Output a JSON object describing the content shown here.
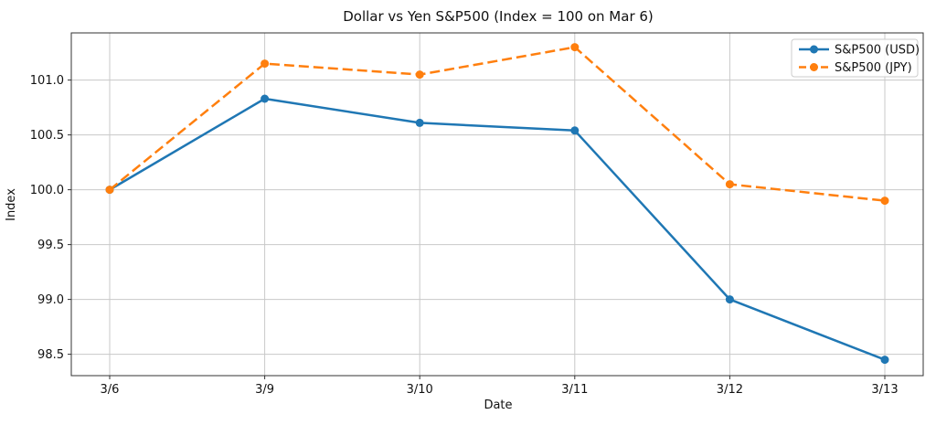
{
  "chart_data": {
    "type": "line",
    "title": "Dollar vs Yen S&P500 (Index = 100 on Mar 6)",
    "xlabel": "Date",
    "ylabel": "Index",
    "categories": [
      "3/6",
      "3/9",
      "3/10",
      "3/11",
      "3/12",
      "3/13"
    ],
    "series": [
      {
        "name": "S&P500 (USD)",
        "color": "#1f77b4",
        "line_style": "solid",
        "marker": "circle",
        "values": [
          100.0,
          100.83,
          100.61,
          100.54,
          99.0,
          98.45
        ]
      },
      {
        "name": "S&P500 (JPY)",
        "color": "#ff7f0e",
        "line_style": "dashed",
        "marker": "circle",
        "values": [
          100.0,
          101.15,
          101.05,
          101.3,
          100.05,
          99.9
        ]
      }
    ],
    "y_ticks": [
      101.0,
      100.5,
      100.0,
      99.5,
      99.0,
      98.5
    ],
    "ylim": [
      98.305,
      101.43
    ],
    "grid": true,
    "legend_position": "upper right"
  },
  "colors": {
    "series_usd": "#1f77b4",
    "series_jpy": "#ff7f0e",
    "grid": "#c8c8c8",
    "axis": "#333333",
    "text": "#111111",
    "legend_border": "#cccccc",
    "background": "#ffffff"
  }
}
